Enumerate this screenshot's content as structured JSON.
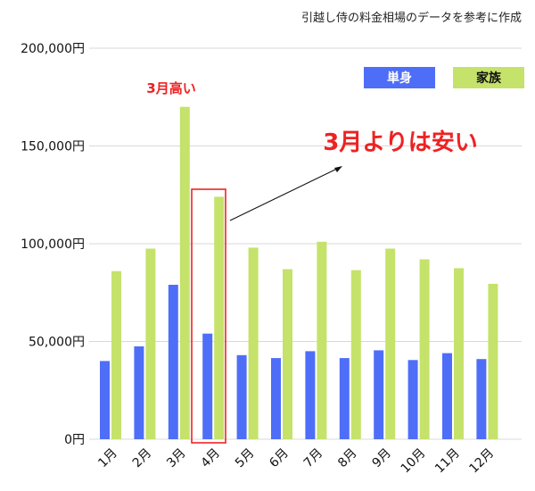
{
  "caption": "引越し侍の料金相場のデータを参考に作成",
  "colors": {
    "single": "#4f6ef7",
    "family": "#c5e26b",
    "annotation": "#ee2222",
    "grid": "#d9d9d9"
  },
  "annotations": {
    "march": "3月高い",
    "april": "3月よりは安い"
  },
  "chart_data": {
    "type": "bar",
    "title": "",
    "xlabel": "",
    "ylabel": "",
    "categories": [
      "1月",
      "2月",
      "3月",
      "4月",
      "5月",
      "6月",
      "7月",
      "8月",
      "9月",
      "10月",
      "11月",
      "12月"
    ],
    "series": [
      {
        "name": "単身",
        "values": [
          40000,
          47500,
          79000,
          54000,
          43000,
          41500,
          45000,
          41500,
          45500,
          40500,
          44000,
          41000
        ]
      },
      {
        "name": "家族",
        "values": [
          86000,
          97500,
          170000,
          124000,
          98000,
          87000,
          101000,
          86500,
          97500,
          92000,
          87500,
          79500
        ]
      }
    ],
    "ylim": [
      0,
      200000
    ],
    "yticks": [
      {
        "value": 0,
        "label": "0円"
      },
      {
        "value": 50000,
        "label": "50,000円"
      },
      {
        "value": 100000,
        "label": "100,000円"
      },
      {
        "value": 150000,
        "label": "150,000円"
      },
      {
        "value": 200000,
        "label": "200,000円"
      }
    ],
    "grid": true,
    "legend": "top-right",
    "highlight_category": "4月"
  }
}
